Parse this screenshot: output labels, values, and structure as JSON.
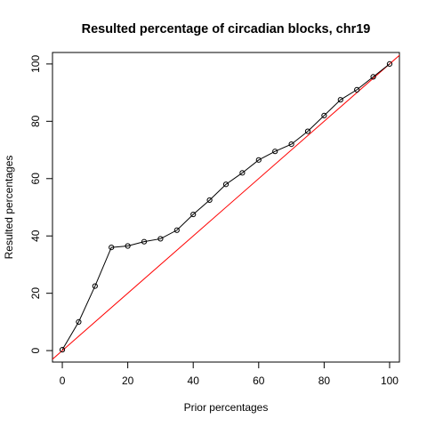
{
  "chart_data": {
    "type": "line",
    "title": "Resulted percentage of circadian blocks, chr19",
    "xlabel": "Prior percentages",
    "ylabel": "Resulted percentages",
    "xlim": [
      -3,
      103
    ],
    "ylim": [
      -4,
      104
    ],
    "x_ticks": [
      0,
      20,
      40,
      60,
      80,
      100
    ],
    "y_ticks": [
      0,
      20,
      40,
      60,
      80,
      100
    ],
    "x_tick_labels": [
      "0",
      "20",
      "40",
      "60",
      "80",
      "100"
    ],
    "y_tick_labels": [
      "0",
      "20",
      "40",
      "60",
      "80",
      "100"
    ],
    "grid": false,
    "series": [
      {
        "name": "resulted",
        "color": "#000000",
        "marker": "open-circle",
        "x": [
          0,
          5,
          10,
          15,
          20,
          25,
          30,
          35,
          40,
          45,
          50,
          55,
          60,
          65,
          70,
          75,
          80,
          85,
          90,
          95,
          100
        ],
        "y": [
          0.3,
          10,
          22.5,
          36,
          36.5,
          38,
          39,
          42,
          47.5,
          52.5,
          58,
          62,
          66.5,
          69.5,
          72,
          76.5,
          82,
          87.5,
          91,
          95.5,
          100
        ]
      }
    ],
    "reference_line": {
      "name": "y = x",
      "color": "#ff0000",
      "intercept": 0,
      "slope": 1
    }
  }
}
